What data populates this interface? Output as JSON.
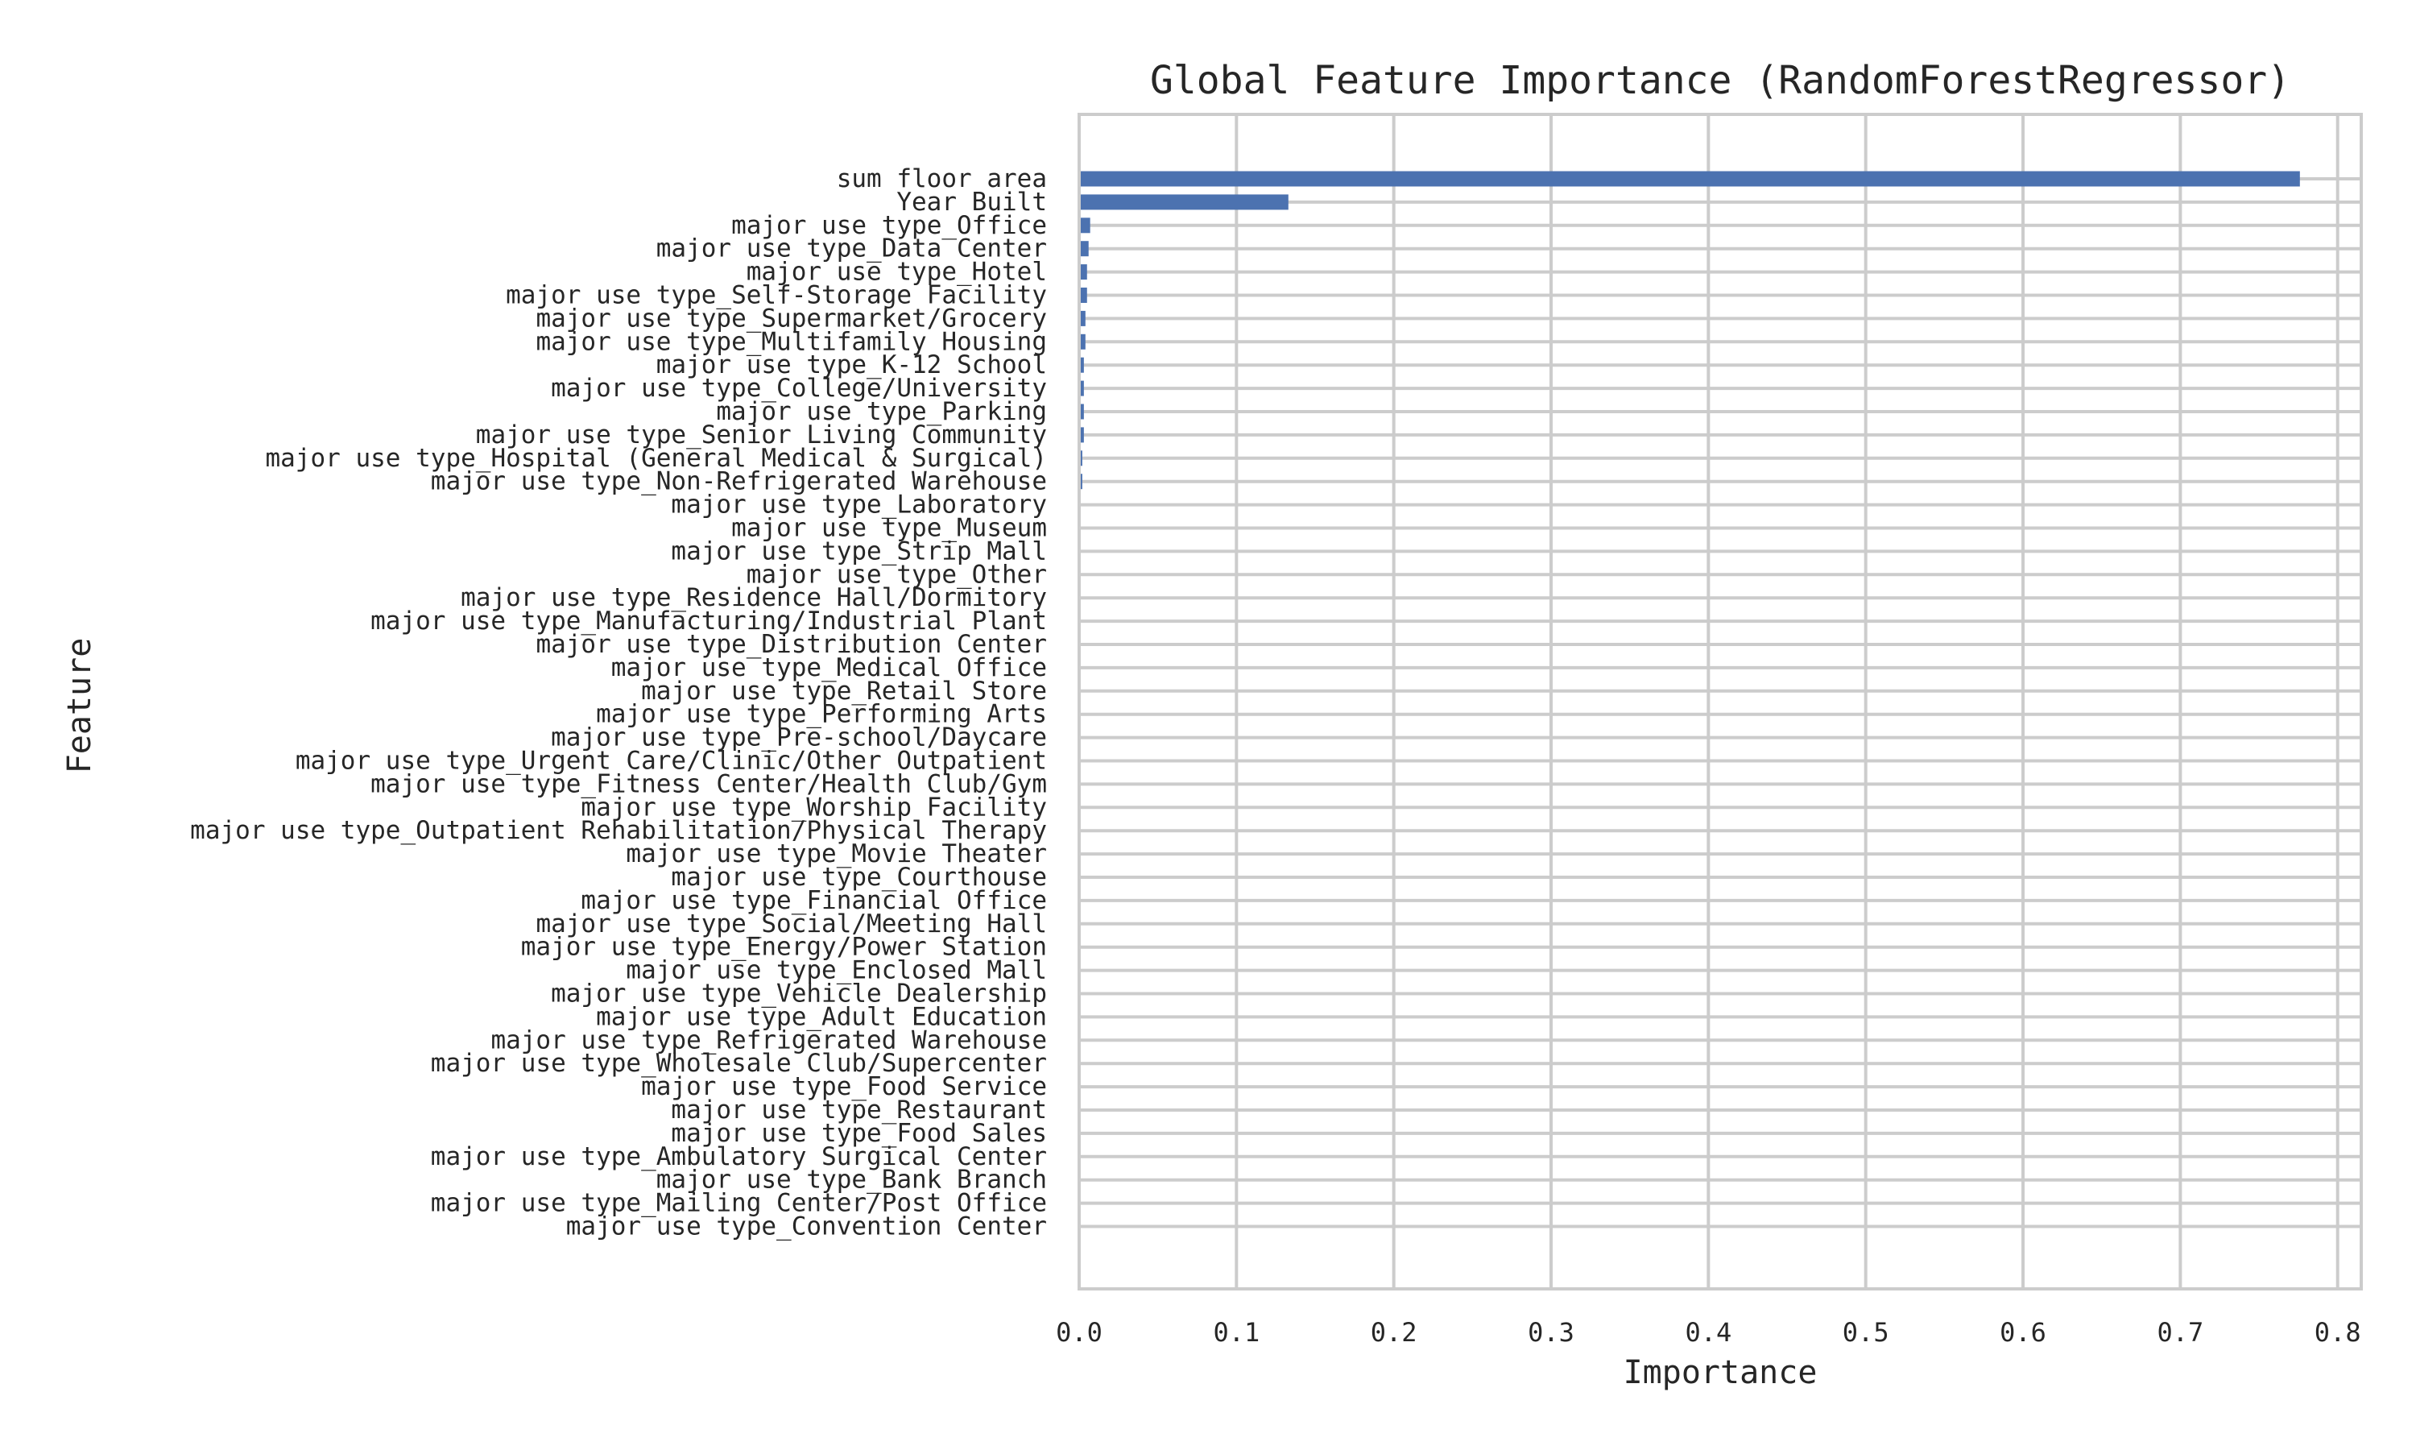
{
  "chart_data": {
    "type": "bar",
    "orientation": "horizontal",
    "title": "Global Feature Importance (RandomForestRegressor)",
    "xlabel": "Importance",
    "ylabel": "Feature",
    "xlim": [
      0,
      0.815
    ],
    "xticks": [
      "0.0",
      "0.1",
      "0.2",
      "0.3",
      "0.4",
      "0.5",
      "0.6",
      "0.7",
      "0.8"
    ],
    "grid": true,
    "legend": "none",
    "bar_color": "#4c72b0",
    "grid_color": "#cccccc",
    "categories": [
      "sum floor area",
      "Year Built",
      "major use type_Office",
      "major use type_Data Center",
      "major use type_Hotel",
      "major use type_Self-Storage Facility",
      "major use type_Supermarket/Grocery",
      "major use type_Multifamily Housing",
      "major use type_K-12 School",
      "major use type_College/University",
      "major use type_Parking",
      "major use type_Senior Living Community",
      "major use type_Hospital (General Medical & Surgical)",
      "major use type_Non-Refrigerated Warehouse",
      "major use type_Laboratory",
      "major use type_Museum",
      "major use type_Strip Mall",
      "major use type_Other",
      "major use type_Residence Hall/Dormitory",
      "major use type_Manufacturing/Industrial Plant",
      "major use type_Distribution Center",
      "major use type_Medical Office",
      "major use type_Retail Store",
      "major use type_Performing Arts",
      "major use type_Pre-school/Daycare",
      "major use type_Urgent Care/Clinic/Other Outpatient",
      "major use type_Fitness Center/Health Club/Gym",
      "major use type_Worship Facility",
      "major use type_Outpatient Rehabilitation/Physical Therapy",
      "major use type_Movie Theater",
      "major use type_Courthouse",
      "major use type_Financial Office",
      "major use type_Social/Meeting Hall",
      "major use type_Energy/Power Station",
      "major use type_Enclosed Mall",
      "major use type_Vehicle Dealership",
      "major use type_Adult Education",
      "major use type_Refrigerated Warehouse",
      "major use type_Wholesale Club/Supercenter",
      "major use type_Food Service",
      "major use type_Restaurant",
      "major use type_Food Sales",
      "major use type_Ambulatory Surgical Center",
      "major use type_Bank Branch",
      "major use type_Mailing Center/Post Office",
      "major use type_Convention Center"
    ],
    "values": [
      0.776,
      0.133,
      0.007,
      0.006,
      0.005,
      0.005,
      0.004,
      0.004,
      0.003,
      0.003,
      0.003,
      0.003,
      0.002,
      0.002,
      0.001,
      0.001,
      0.001,
      0.001,
      0.0008,
      0.0008,
      0.0007,
      0.0007,
      0.0006,
      0.0006,
      0.0005,
      0.0005,
      0.0005,
      0.0004,
      0.0004,
      0.0004,
      0.0003,
      0.0003,
      0.0003,
      0.0002,
      0.0002,
      0.0002,
      0.0002,
      0.0001,
      0.0001,
      0.0001,
      0.0001,
      0.0001,
      5e-05,
      5e-05,
      3e-05,
      2e-05
    ]
  }
}
